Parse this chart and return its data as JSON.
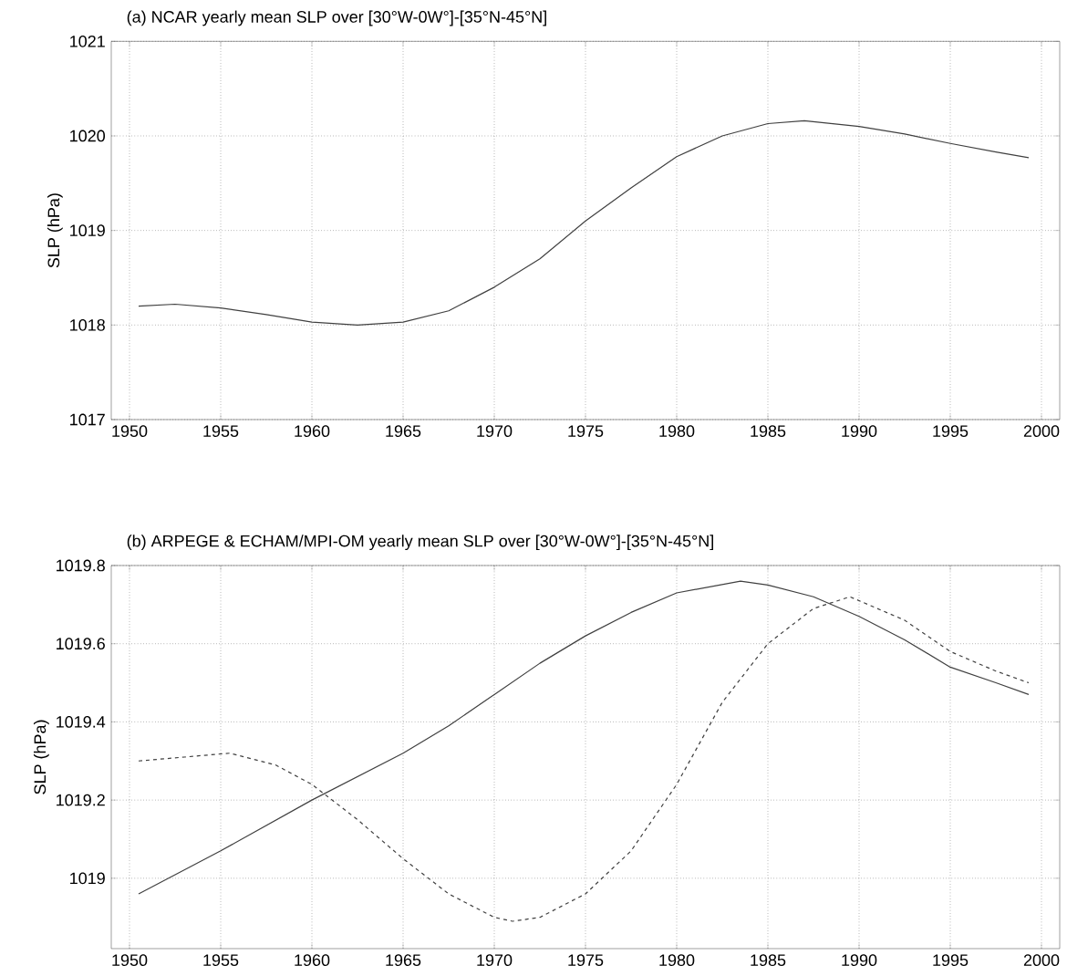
{
  "chart_data": [
    {
      "type": "line",
      "title": "(a) NCAR yearly mean SLP over [30°W-0W°]-[35°N-45°N]",
      "ylabel": "SLP (hPa)",
      "x": [
        1950.5,
        1952.5,
        1955,
        1957.5,
        1960,
        1962.5,
        1965,
        1967.5,
        1970,
        1972.5,
        1975,
        1977.5,
        1980,
        1982.5,
        1985,
        1987,
        1990,
        1992.5,
        1995,
        1997.5,
        1999.3
      ],
      "values": [
        1018.2,
        1018.22,
        1018.18,
        1018.11,
        1018.03,
        1018.0,
        1018.03,
        1018.15,
        1018.4,
        1018.7,
        1019.1,
        1019.45,
        1019.78,
        1020.0,
        1020.13,
        1020.16,
        1020.1,
        1020.02,
        1019.92,
        1019.83,
        1019.77
      ],
      "color": "#404040",
      "line_style": "solid",
      "marker": "none",
      "grid": true,
      "xlim": [
        1949,
        2001
      ],
      "ylim": [
        1017,
        1021
      ],
      "xticks": [
        1950,
        1955,
        1960,
        1965,
        1970,
        1975,
        1980,
        1985,
        1990,
        1995,
        2000
      ],
      "yticks": [
        1017,
        1018,
        1019,
        1020,
        1021
      ]
    },
    {
      "type": "line",
      "title": "(b) ARPEGE & ECHAM/MPI-OM yearly mean SLP over [30°W-0W°]-[35°N-45°N]",
      "ylabel": "SLP (hPa)",
      "series": [
        {
          "color": "#404040",
          "line_style": "solid",
          "x": [
            1950.5,
            1955,
            1960,
            1965,
            1967.5,
            1970,
            1972.5,
            1975,
            1977.5,
            1980,
            1983.5,
            1985,
            1987.5,
            1990,
            1992.5,
            1995,
            1997.5,
            1999.3
          ],
          "values": [
            1018.96,
            1019.07,
            1019.2,
            1019.32,
            1019.39,
            1019.47,
            1019.55,
            1019.62,
            1019.68,
            1019.73,
            1019.76,
            1019.75,
            1019.72,
            1019.67,
            1019.61,
            1019.54,
            1019.5,
            1019.47
          ]
        },
        {
          "color": "#404040",
          "line_style": "dashed",
          "x": [
            1950.5,
            1953,
            1955.5,
            1958,
            1960,
            1962.5,
            1965,
            1967.5,
            1970,
            1971,
            1972.5,
            1975,
            1977.5,
            1980,
            1982.5,
            1985,
            1987.5,
            1989.5,
            1992.5,
            1995,
            1997.5,
            1999.3
          ],
          "values": [
            1019.3,
            1019.31,
            1019.32,
            1019.29,
            1019.24,
            1019.15,
            1019.05,
            1018.96,
            1018.9,
            1018.89,
            1018.9,
            1018.96,
            1019.07,
            1019.24,
            1019.45,
            1019.6,
            1019.69,
            1019.72,
            1019.66,
            1019.58,
            1019.53,
            1019.5
          ]
        }
      ],
      "marker": "none",
      "grid": true,
      "xlim": [
        1949,
        2001
      ],
      "ylim": [
        1018.82,
        1019.8
      ],
      "xticks": [
        1950,
        1955,
        1960,
        1965,
        1970,
        1975,
        1980,
        1985,
        1990,
        1995,
        2000
      ],
      "yticks": [
        1019,
        1019.2,
        1019.4,
        1019.6,
        1019.8
      ]
    }
  ]
}
